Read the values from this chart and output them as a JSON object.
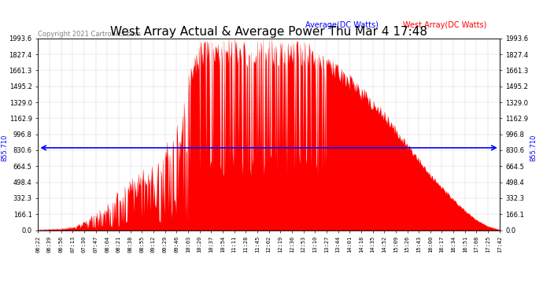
{
  "title": "West Array Actual & Average Power Thu Mar 4 17:48",
  "copyright": "Copyright 2021 Cartronics.com",
  "legend_average": "Average(DC Watts)",
  "legend_west": "West Array(DC Watts)",
  "legend_average_color": "blue",
  "legend_west_color": "red",
  "y_ticks": [
    0.0,
    166.1,
    332.3,
    498.4,
    664.5,
    830.6,
    996.8,
    1162.9,
    1329.0,
    1495.2,
    1661.3,
    1827.4,
    1993.6
  ],
  "hline_value": 855.71,
  "hline_label": "855.710",
  "background_color": "#ffffff",
  "grid_color": "#bbbbbb",
  "title_fontsize": 11,
  "x_times": [
    "06:22",
    "06:39",
    "06:56",
    "07:13",
    "07:30",
    "07:47",
    "08:04",
    "08:21",
    "08:38",
    "08:55",
    "09:12",
    "09:29",
    "09:46",
    "10:03",
    "10:20",
    "10:37",
    "10:54",
    "11:11",
    "11:28",
    "11:45",
    "12:02",
    "12:19",
    "12:36",
    "12:53",
    "13:10",
    "13:27",
    "13:44",
    "14:01",
    "14:18",
    "14:35",
    "14:52",
    "15:09",
    "15:26",
    "15:43",
    "16:00",
    "16:17",
    "16:34",
    "16:51",
    "17:08",
    "17:25",
    "17:42"
  ],
  "west_envelope": [
    5,
    15,
    25,
    50,
    100,
    180,
    280,
    420,
    520,
    650,
    750,
    900,
    1150,
    1600,
    1950,
    1993,
    1993,
    1993,
    1993,
    1993,
    1993,
    1993,
    1993,
    1980,
    1900,
    1820,
    1720,
    1620,
    1500,
    1380,
    1240,
    1080,
    920,
    760,
    600,
    460,
    330,
    210,
    110,
    40,
    5
  ],
  "west_base": [
    3,
    8,
    12,
    25,
    60,
    100,
    160,
    250,
    350,
    450,
    550,
    650,
    750,
    850,
    900,
    920,
    930,
    940,
    940,
    935,
    930,
    920,
    910,
    900,
    890,
    870,
    840,
    800,
    740,
    680,
    600,
    510,
    400,
    300,
    210,
    150,
    100,
    60,
    30,
    10,
    2
  ],
  "ymax": 1993.6,
  "ymin": 0.0
}
